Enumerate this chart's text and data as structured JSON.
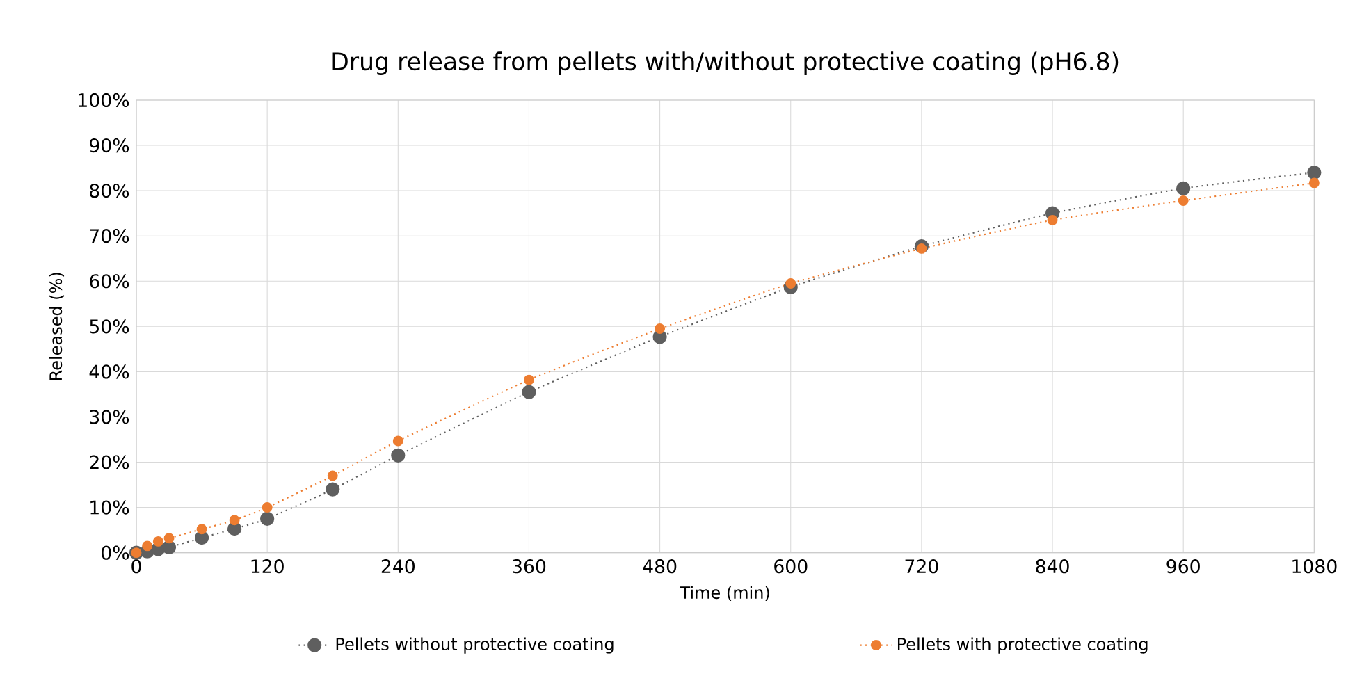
{
  "chart_data": {
    "type": "line",
    "title": "Drug release from pellets with/without protective coating (pH6.8)",
    "xlabel": "Time (min)",
    "ylabel": "Released (%)",
    "x": [
      0,
      10,
      20,
      30,
      60,
      90,
      120,
      180,
      240,
      360,
      480,
      600,
      720,
      840,
      960,
      1080
    ],
    "series": [
      {
        "name": "Pellets without protective coating",
        "color": "#5f5f5f",
        "values": [
          0,
          0.3,
          0.8,
          1.2,
          3.3,
          5.3,
          7.5,
          14,
          21.5,
          35.5,
          47.7,
          58.7,
          67.7,
          75,
          80.5,
          84
        ]
      },
      {
        "name": "Pellets with protective coating",
        "color": "#ed7d31",
        "values": [
          0,
          1.5,
          2.5,
          3.2,
          5.2,
          7.2,
          10,
          17,
          24.7,
          38.2,
          49.5,
          59.5,
          67.2,
          73.5,
          77.8,
          81.7
        ]
      }
    ],
    "xlim": [
      0,
      1080
    ],
    "xticks": [
      0,
      120,
      240,
      360,
      480,
      600,
      720,
      840,
      960,
      1080
    ],
    "ylim": [
      0,
      100
    ],
    "yticks": [
      {
        "value": 0,
        "label": "0%"
      },
      {
        "value": 10,
        "label": "10%"
      },
      {
        "value": 20,
        "label": "20%"
      },
      {
        "value": 30,
        "label": "30%"
      },
      {
        "value": 40,
        "label": "40%"
      },
      {
        "value": 50,
        "label": "50%"
      },
      {
        "value": 60,
        "label": "60%"
      },
      {
        "value": 70,
        "label": "70%"
      },
      {
        "value": 80,
        "label": "80%"
      },
      {
        "value": 90,
        "label": "90%"
      },
      {
        "value": 100,
        "label": "100%"
      }
    ],
    "grid": true,
    "legend": "bottom",
    "marker": "circle",
    "line_style": "dotted"
  }
}
